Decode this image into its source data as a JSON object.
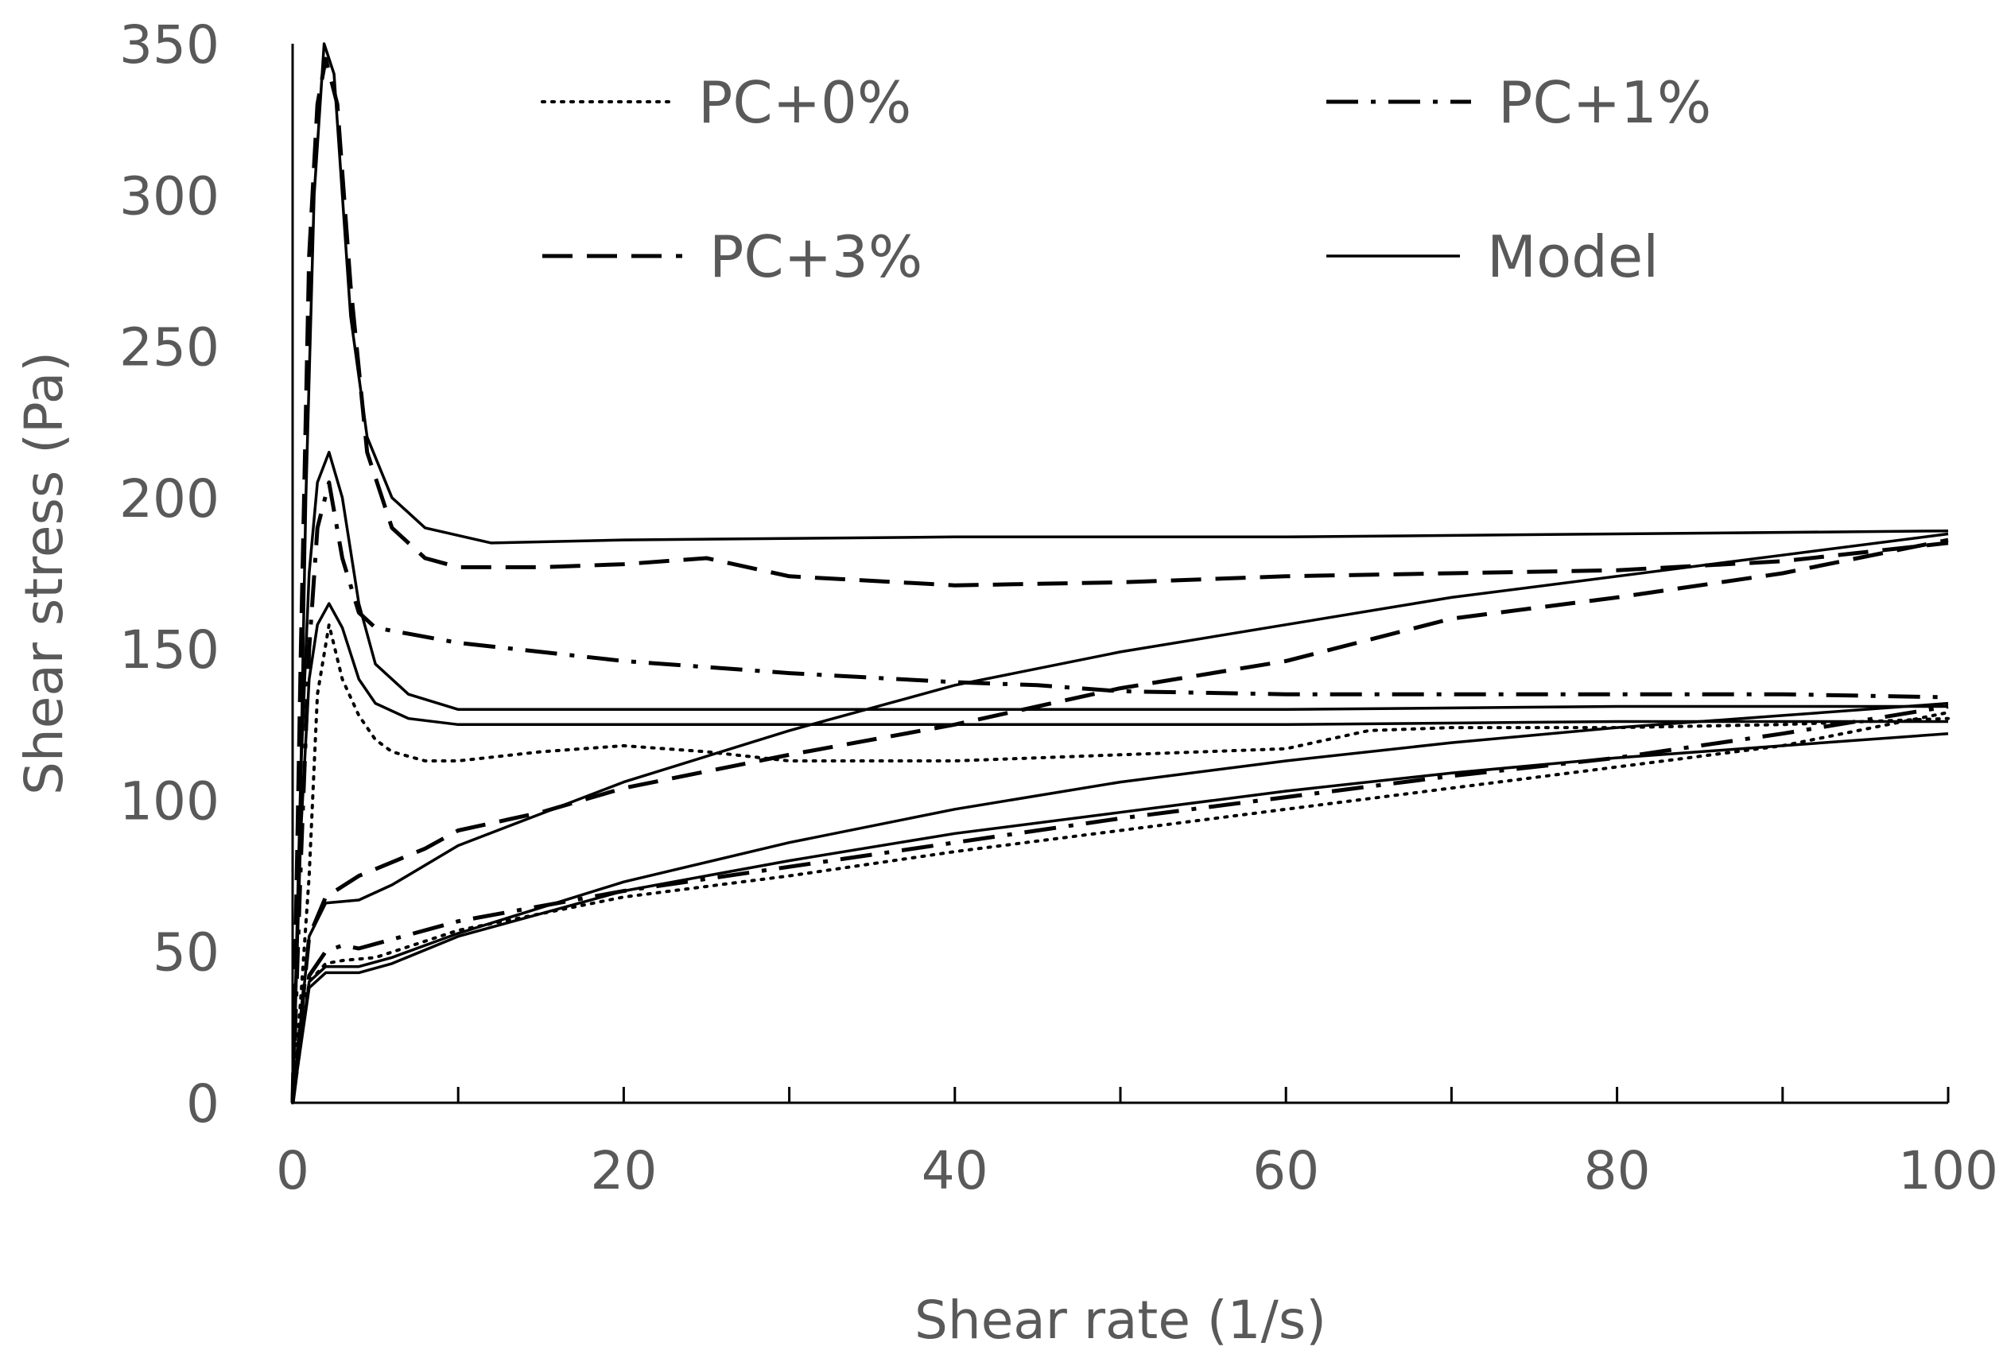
{
  "chart_data": {
    "type": "line",
    "title": "",
    "xlabel": "Shear rate (1/s)",
    "ylabel": "Shear stress (Pa)",
    "xlim": [
      0,
      100
    ],
    "ylim": [
      0,
      350
    ],
    "x_ticks": [
      0,
      20,
      40,
      60,
      80,
      100
    ],
    "x_tick_labels": [
      "0",
      "20",
      "40",
      "60",
      "80",
      "100"
    ],
    "y_ticks": [
      0,
      50,
      100,
      150,
      200,
      250,
      300,
      350
    ],
    "y_tick_labels": [
      "0",
      "50",
      "100",
      "150",
      "200",
      "250",
      "300",
      "350"
    ],
    "x_minor_tick_step": 10,
    "grid": false,
    "legend_position": "top",
    "legend": [
      {
        "label": "PC+0%",
        "style": "dotted"
      },
      {
        "label": "PC+1%",
        "style": "dash-dot"
      },
      {
        "label": "PC+3%",
        "style": "dashed"
      },
      {
        "label": "Model",
        "style": "solid"
      }
    ],
    "series": [
      {
        "name": "PC+0%",
        "style": "dotted",
        "points": [
          [
            0,
            0
          ],
          [
            0.5,
            35
          ],
          [
            1,
            75
          ],
          [
            1.5,
            135
          ],
          [
            2.2,
            158
          ],
          [
            3,
            140
          ],
          [
            4,
            128
          ],
          [
            5,
            120
          ],
          [
            6,
            116
          ],
          [
            8,
            113
          ],
          [
            10,
            113
          ],
          [
            15,
            116
          ],
          [
            20,
            118
          ],
          [
            25,
            116
          ],
          [
            30,
            113
          ],
          [
            40,
            113
          ],
          [
            50,
            115
          ],
          [
            55,
            116
          ],
          [
            60,
            117
          ],
          [
            65,
            123
          ],
          [
            70,
            124
          ],
          [
            80,
            124
          ],
          [
            90,
            125
          ],
          [
            100,
            127
          ]
        ]
      },
      {
        "name": "PC+0%",
        "style": "dotted",
        "points": [
          [
            0,
            0
          ],
          [
            1,
            40
          ],
          [
            2,
            46
          ],
          [
            3,
            47
          ],
          [
            5,
            48
          ],
          [
            10,
            57
          ],
          [
            20,
            68
          ],
          [
            30,
            75
          ],
          [
            40,
            83
          ],
          [
            50,
            90
          ],
          [
            60,
            97
          ],
          [
            70,
            104
          ],
          [
            80,
            111
          ],
          [
            90,
            118
          ],
          [
            100,
            129
          ]
        ]
      },
      {
        "name": "PC+1%",
        "style": "dash-dot",
        "points": [
          [
            0,
            0
          ],
          [
            0.5,
            80
          ],
          [
            1,
            150
          ],
          [
            1.5,
            190
          ],
          [
            2.2,
            205
          ],
          [
            3,
            180
          ],
          [
            4,
            162
          ],
          [
            5,
            157
          ],
          [
            7,
            155
          ],
          [
            10,
            152
          ],
          [
            20,
            146
          ],
          [
            30,
            142
          ],
          [
            40,
            139
          ],
          [
            45,
            138
          ],
          [
            50,
            136
          ],
          [
            60,
            135
          ],
          [
            70,
            135
          ],
          [
            80,
            135
          ],
          [
            90,
            135
          ],
          [
            100,
            134
          ]
        ]
      },
      {
        "name": "PC+1%",
        "style": "dash-dot",
        "points": [
          [
            0,
            0
          ],
          [
            1,
            42
          ],
          [
            2,
            50
          ],
          [
            3,
            52
          ],
          [
            4,
            51
          ],
          [
            6,
            54
          ],
          [
            10,
            60
          ],
          [
            20,
            70
          ],
          [
            30,
            78
          ],
          [
            40,
            86
          ],
          [
            50,
            94
          ],
          [
            60,
            101
          ],
          [
            70,
            108
          ],
          [
            80,
            114
          ],
          [
            90,
            122
          ],
          [
            100,
            131
          ]
        ]
      },
      {
        "name": "PC+3%",
        "style": "dashed",
        "points": [
          [
            0,
            0
          ],
          [
            0.5,
            150
          ],
          [
            1,
            280
          ],
          [
            1.5,
            330
          ],
          [
            2,
            345
          ],
          [
            2.7,
            330
          ],
          [
            3.5,
            270
          ],
          [
            4.5,
            215
          ],
          [
            6,
            190
          ],
          [
            8,
            180
          ],
          [
            10,
            177
          ],
          [
            15,
            177
          ],
          [
            20,
            178
          ],
          [
            25,
            180
          ],
          [
            30,
            174
          ],
          [
            40,
            171
          ],
          [
            50,
            172
          ],
          [
            60,
            174
          ],
          [
            70,
            175
          ],
          [
            80,
            176
          ],
          [
            90,
            179
          ],
          [
            100,
            185
          ]
        ]
      },
      {
        "name": "PC+3%",
        "style": "dashed",
        "points": [
          [
            0,
            0
          ],
          [
            1,
            55
          ],
          [
            2,
            68
          ],
          [
            4,
            75
          ],
          [
            8,
            84
          ],
          [
            10,
            90
          ],
          [
            15,
            96
          ],
          [
            20,
            104
          ],
          [
            30,
            115
          ],
          [
            40,
            125
          ],
          [
            50,
            137
          ],
          [
            60,
            146
          ],
          [
            70,
            160
          ],
          [
            80,
            167
          ],
          [
            90,
            175
          ],
          [
            100,
            186
          ]
        ]
      },
      {
        "name": "Model",
        "style": "solid",
        "points": [
          [
            0,
            0
          ],
          [
            0.4,
            80
          ],
          [
            0.8,
            200
          ],
          [
            1.3,
            300
          ],
          [
            1.9,
            350
          ],
          [
            2.5,
            340
          ],
          [
            3,
            300
          ],
          [
            3.5,
            260
          ],
          [
            4.5,
            220
          ],
          [
            6,
            200
          ],
          [
            8,
            190
          ],
          [
            12,
            185
          ],
          [
            20,
            186
          ],
          [
            40,
            187
          ],
          [
            60,
            187
          ],
          [
            80,
            188
          ],
          [
            100,
            189
          ]
        ]
      },
      {
        "name": "Model",
        "style": "solid",
        "points": [
          [
            0,
            0
          ],
          [
            0.5,
            110
          ],
          [
            1,
            175
          ],
          [
            1.5,
            205
          ],
          [
            2.2,
            215
          ],
          [
            3,
            200
          ],
          [
            4,
            165
          ],
          [
            5,
            145
          ],
          [
            7,
            135
          ],
          [
            10,
            130
          ],
          [
            20,
            130
          ],
          [
            40,
            130
          ],
          [
            60,
            130
          ],
          [
            80,
            131
          ],
          [
            100,
            131
          ]
        ]
      },
      {
        "name": "Model",
        "style": "solid",
        "points": [
          [
            0,
            0
          ],
          [
            0.5,
            90
          ],
          [
            1,
            140
          ],
          [
            1.5,
            158
          ],
          [
            2.2,
            165
          ],
          [
            3,
            157
          ],
          [
            4,
            140
          ],
          [
            5,
            132
          ],
          [
            7,
            127
          ],
          [
            10,
            125
          ],
          [
            20,
            125
          ],
          [
            40,
            125
          ],
          [
            60,
            125
          ],
          [
            80,
            126
          ],
          [
            100,
            126
          ]
        ]
      },
      {
        "name": "Model",
        "style": "solid",
        "points": [
          [
            0,
            0
          ],
          [
            1,
            55
          ],
          [
            2,
            66
          ],
          [
            4,
            67
          ],
          [
            6,
            72
          ],
          [
            10,
            85
          ],
          [
            20,
            106
          ],
          [
            30,
            123
          ],
          [
            40,
            138
          ],
          [
            50,
            149
          ],
          [
            60,
            158
          ],
          [
            70,
            167
          ],
          [
            80,
            174
          ],
          [
            90,
            181
          ],
          [
            100,
            188
          ]
        ]
      },
      {
        "name": "Model",
        "style": "solid",
        "points": [
          [
            0,
            0
          ],
          [
            1,
            40
          ],
          [
            2,
            45
          ],
          [
            4,
            45
          ],
          [
            6,
            48
          ],
          [
            10,
            56
          ],
          [
            20,
            73
          ],
          [
            30,
            86
          ],
          [
            40,
            97
          ],
          [
            50,
            106
          ],
          [
            60,
            113
          ],
          [
            70,
            119
          ],
          [
            80,
            124
          ],
          [
            90,
            128
          ],
          [
            100,
            132
          ]
        ]
      },
      {
        "name": "Model",
        "style": "solid",
        "points": [
          [
            0,
            0
          ],
          [
            1,
            38
          ],
          [
            2,
            43
          ],
          [
            4,
            43
          ],
          [
            6,
            46
          ],
          [
            10,
            55
          ],
          [
            20,
            70
          ],
          [
            30,
            80
          ],
          [
            40,
            89
          ],
          [
            50,
            96
          ],
          [
            60,
            103
          ],
          [
            70,
            109
          ],
          [
            80,
            114
          ],
          [
            90,
            118
          ],
          [
            100,
            122
          ]
        ]
      }
    ]
  }
}
